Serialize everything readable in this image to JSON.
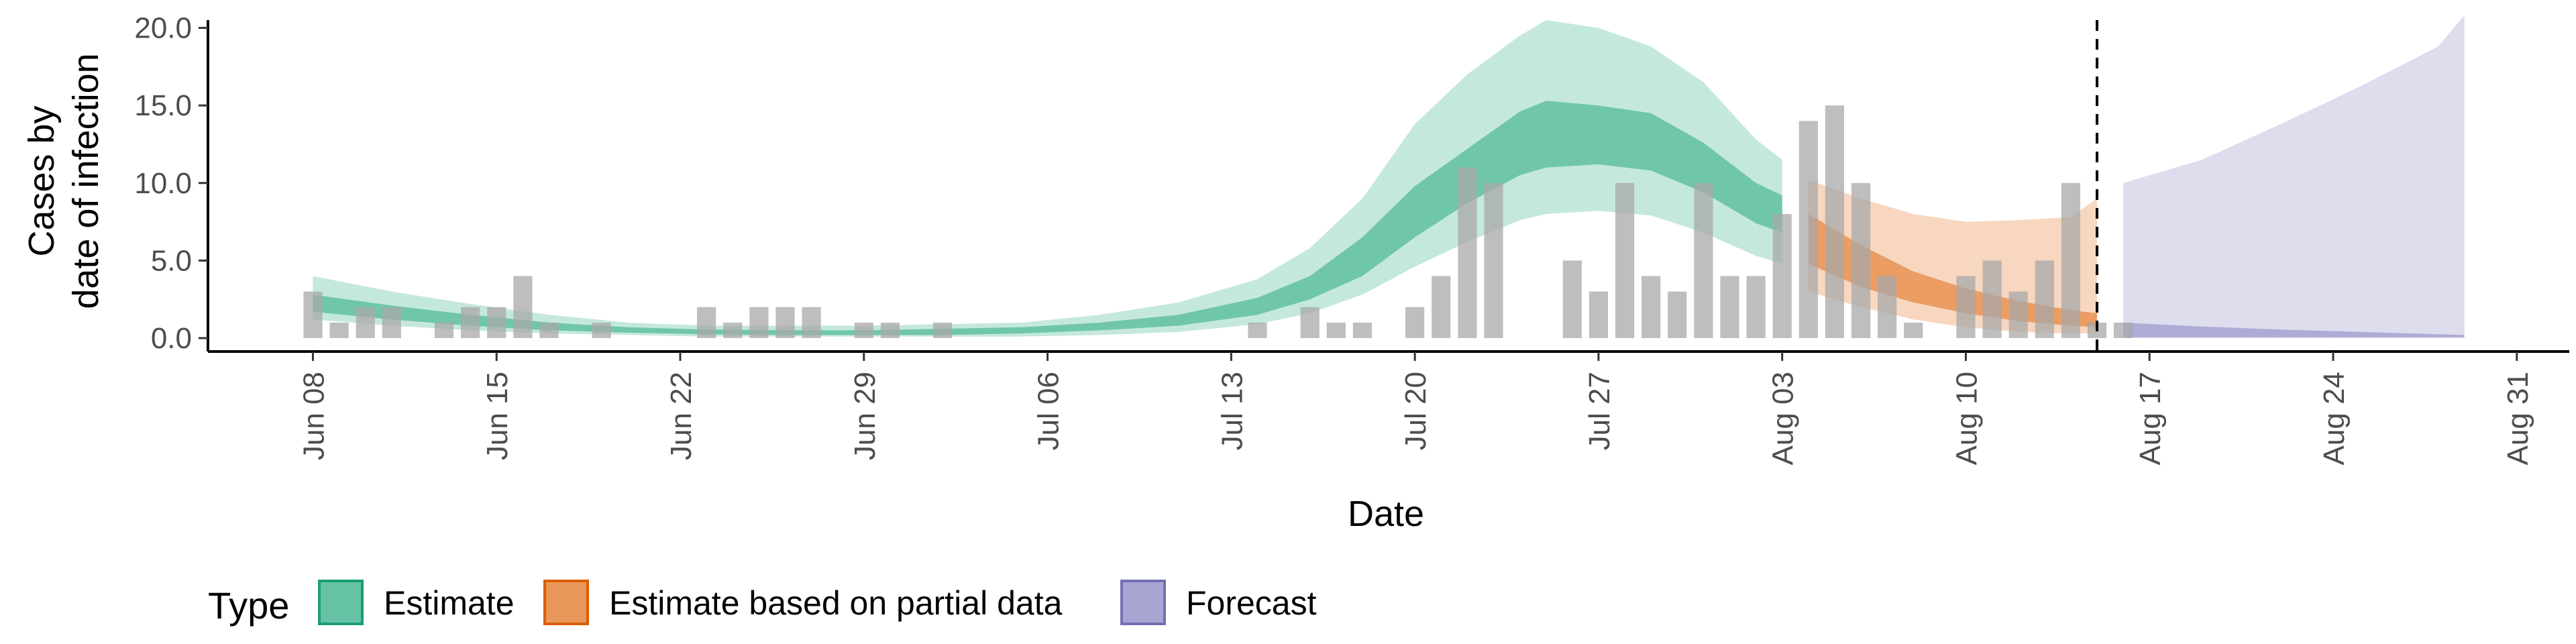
{
  "chart_data": {
    "type": "area",
    "xlabel": "Date",
    "ylabel_lines": [
      "Cases by",
      "date of infection"
    ],
    "ylim": [
      0,
      20.5
    ],
    "yticks": [
      "0.0",
      "5.0",
      "10.0",
      "15.0",
      "20.0"
    ],
    "ytick_values": [
      0,
      5,
      10,
      15,
      20
    ],
    "xlim": [
      "2020-06-04",
      "2020-09-02"
    ],
    "xticks": [
      "Jun 08",
      "Jun 15",
      "Jun 22",
      "Jun 29",
      "Jul 06",
      "Jul 13",
      "Jul 20",
      "Jul 27",
      "Aug 03",
      "Aug 10",
      "Aug 17",
      "Aug 24",
      "Aug 31"
    ],
    "xtick_dates": [
      "2020-06-08",
      "2020-06-15",
      "2020-06-22",
      "2020-06-29",
      "2020-07-06",
      "2020-07-13",
      "2020-07-20",
      "2020-07-27",
      "2020-08-03",
      "2020-08-10",
      "2020-08-17",
      "2020-08-24",
      "2020-08-31"
    ],
    "vline_date": "2020-08-15",
    "vline_style": "dashed",
    "grid": false,
    "legend": {
      "title": "Type",
      "placement": "bottom-left",
      "entries": [
        {
          "label": "Estimate",
          "fill": "#66c2a5",
          "stroke": "#1b9e77"
        },
        {
          "label": "Estimate based on partial data",
          "fill": "#e9975a",
          "stroke": "#d95f02"
        },
        {
          "label": "Forecast",
          "fill": "#a9a5d3",
          "stroke": "#7570b3"
        }
      ]
    },
    "observed_cases": {
      "color": "#a8a8a8",
      "x": [
        "2020-06-08",
        "2020-06-09",
        "2020-06-10",
        "2020-06-11",
        "2020-06-13",
        "2020-06-14",
        "2020-06-15",
        "2020-06-16",
        "2020-06-17",
        "2020-06-19",
        "2020-06-23",
        "2020-06-24",
        "2020-06-25",
        "2020-06-26",
        "2020-06-27",
        "2020-06-29",
        "2020-06-30",
        "2020-07-02",
        "2020-07-14",
        "2020-07-16",
        "2020-07-17",
        "2020-07-18",
        "2020-07-20",
        "2020-07-21",
        "2020-07-22",
        "2020-07-23",
        "2020-07-26",
        "2020-07-27",
        "2020-07-28",
        "2020-07-29",
        "2020-07-30",
        "2020-07-31",
        "2020-08-01",
        "2020-08-02",
        "2020-08-03",
        "2020-08-04",
        "2020-08-05",
        "2020-08-06",
        "2020-08-07",
        "2020-08-08",
        "2020-08-10",
        "2020-08-11",
        "2020-08-12",
        "2020-08-13",
        "2020-08-14",
        "2020-08-15",
        "2020-08-16"
      ],
      "values": [
        3,
        1,
        2,
        2,
        1,
        2,
        2,
        4,
        1,
        1,
        2,
        1,
        2,
        2,
        2,
        1,
        1,
        1,
        1,
        2,
        1,
        1,
        2,
        4,
        11,
        10,
        5,
        3,
        10,
        4,
        3,
        10,
        4,
        4,
        8,
        14,
        15,
        10,
        4,
        1,
        4,
        5,
        3,
        5,
        10,
        1,
        1
      ]
    },
    "series": [
      {
        "name": "Estimate",
        "color": "#66c2a5",
        "x": [
          "2020-06-08",
          "2020-06-11",
          "2020-06-14",
          "2020-06-17",
          "2020-06-20",
          "2020-06-23",
          "2020-06-26",
          "2020-06-29",
          "2020-07-02",
          "2020-07-05",
          "2020-07-08",
          "2020-07-11",
          "2020-07-14",
          "2020-07-16",
          "2020-07-18",
          "2020-07-20",
          "2020-07-22",
          "2020-07-24",
          "2020-07-25",
          "2020-07-27",
          "2020-07-29",
          "2020-07-31",
          "2020-08-02",
          "2020-08-03"
        ],
        "lower90": [
          1.2,
          0.8,
          0.5,
          0.3,
          0.2,
          0.1,
          0.1,
          0.1,
          0.1,
          0.1,
          0.2,
          0.4,
          0.9,
          1.6,
          2.8,
          4.6,
          6.2,
          7.6,
          8.0,
          8.2,
          7.9,
          6.8,
          5.3,
          4.8
        ],
        "lower50": [
          1.7,
          1.2,
          0.8,
          0.5,
          0.35,
          0.25,
          0.2,
          0.2,
          0.2,
          0.3,
          0.5,
          0.8,
          1.5,
          2.5,
          4.0,
          6.5,
          8.7,
          10.5,
          11.0,
          11.2,
          10.8,
          9.4,
          7.4,
          6.8
        ],
        "upper50": [
          2.8,
          2.1,
          1.5,
          1.0,
          0.7,
          0.55,
          0.5,
          0.5,
          0.6,
          0.7,
          1.0,
          1.5,
          2.6,
          4.0,
          6.5,
          9.8,
          12.2,
          14.6,
          15.3,
          15.0,
          14.5,
          12.6,
          10.0,
          9.2
        ],
        "upper90": [
          4.0,
          3.0,
          2.2,
          1.5,
          1.0,
          0.8,
          0.8,
          0.8,
          0.9,
          1.0,
          1.5,
          2.3,
          3.8,
          5.8,
          9.0,
          13.8,
          17.0,
          19.5,
          20.5,
          20.0,
          18.8,
          16.5,
          12.8,
          11.5
        ]
      },
      {
        "name": "Estimate based on partial data",
        "color": "#e9975a",
        "x": [
          "2020-08-04",
          "2020-08-06",
          "2020-08-08",
          "2020-08-10",
          "2020-08-12",
          "2020-08-14",
          "2020-08-15"
        ],
        "lower90": [
          3.0,
          2.0,
          1.2,
          0.7,
          0.4,
          0.3,
          0.3
        ],
        "lower50": [
          4.8,
          3.3,
          2.3,
          1.6,
          1.1,
          0.8,
          0.7
        ],
        "upper50": [
          8.0,
          6.0,
          4.3,
          3.2,
          2.4,
          1.8,
          1.6
        ],
        "upper90": [
          10.2,
          9.0,
          8.0,
          7.5,
          7.6,
          7.8,
          9.0
        ]
      },
      {
        "name": "Forecast",
        "color": "#a9a5d3",
        "x": [
          "2020-08-16",
          "2020-08-19",
          "2020-08-22",
          "2020-08-25",
          "2020-08-28",
          "2020-08-29"
        ],
        "lower90": [
          0,
          0,
          0,
          0,
          0,
          0
        ],
        "lower50": [
          0.05,
          0.05,
          0.05,
          0.05,
          0.05,
          0.05
        ],
        "upper50": [
          1.0,
          0.75,
          0.55,
          0.4,
          0.25,
          0.2
        ],
        "upper90": [
          10.0,
          11.5,
          13.8,
          16.2,
          18.8,
          20.8
        ]
      }
    ]
  }
}
